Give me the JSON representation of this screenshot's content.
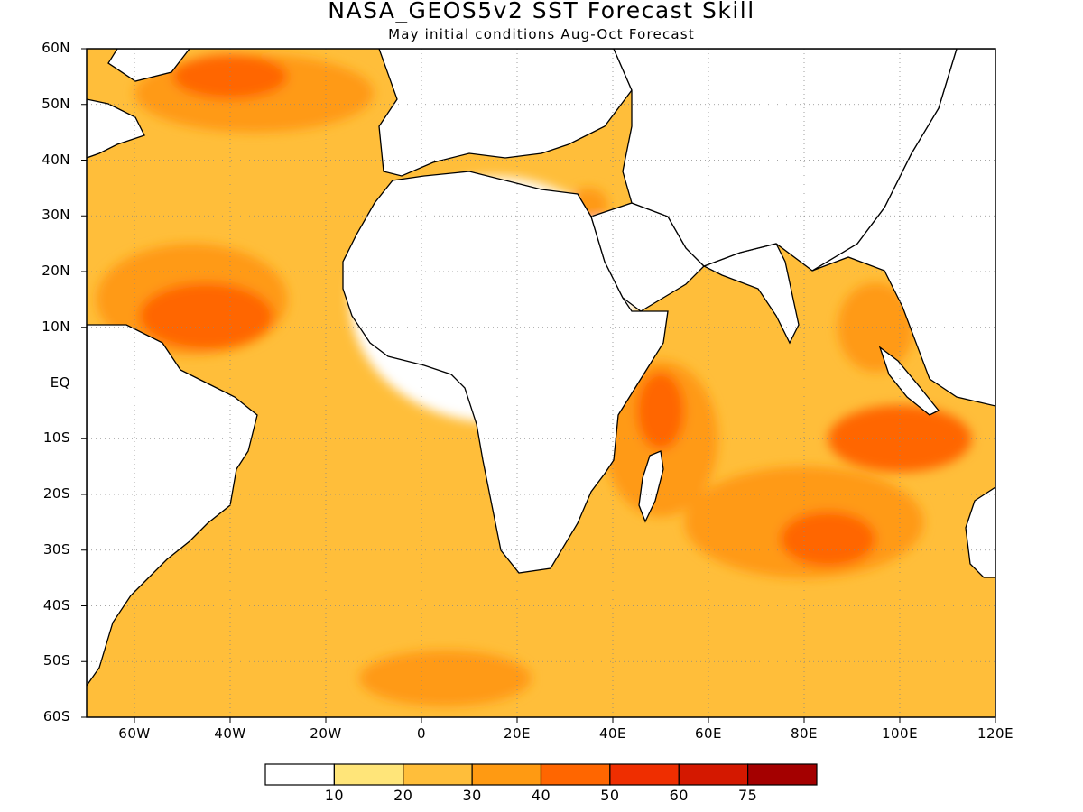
{
  "title": "NASA_GEOS5v2 SST Forecast Skill",
  "subtitle": "May initial conditions  Aug-Oct Forecast",
  "map": {
    "lon_range": [
      -70,
      120
    ],
    "lat_range": [
      -60,
      60
    ],
    "lat_labels": [
      "60N",
      "50N",
      "40N",
      "30N",
      "20N",
      "10N",
      "EQ",
      "10S",
      "20S",
      "30S",
      "40S",
      "50S",
      "60S"
    ],
    "lon_labels": [
      "60W",
      "40W",
      "20W",
      "0",
      "20E",
      "40E",
      "60E",
      "80E",
      "100E",
      "120E"
    ],
    "lon_ticks": [
      -60,
      -40,
      -20,
      0,
      20,
      40,
      60,
      80,
      100,
      120
    ],
    "lat_ticks": [
      60,
      50,
      40,
      30,
      20,
      10,
      0,
      -10,
      -20,
      -30,
      -40,
      -50,
      -60
    ],
    "grid": true,
    "skill_regions": [
      {
        "level": 0,
        "lon": 15,
        "lat": 15,
        "rx": 30,
        "ry": 22
      },
      {
        "level": 3,
        "lon": -48,
        "lat": 15,
        "rx": 20,
        "ry": 10
      },
      {
        "level": 4,
        "lon": -45,
        "lat": 12,
        "rx": 14,
        "ry": 6
      },
      {
        "level": 3,
        "lon": -35,
        "lat": 52,
        "rx": 25,
        "ry": 7
      },
      {
        "level": 4,
        "lon": -40,
        "lat": 55,
        "rx": 12,
        "ry": 4
      },
      {
        "level": 3,
        "lon": 50,
        "lat": -10,
        "rx": 12,
        "ry": 14
      },
      {
        "level": 4,
        "lon": 50,
        "lat": -5,
        "rx": 5,
        "ry": 7
      },
      {
        "level": 3,
        "lon": 80,
        "lat": -25,
        "rx": 25,
        "ry": 10
      },
      {
        "level": 4,
        "lon": 85,
        "lat": -28,
        "rx": 10,
        "ry": 5
      },
      {
        "level": 4,
        "lon": 100,
        "lat": -10,
        "rx": 15,
        "ry": 6
      },
      {
        "level": 3,
        "lon": 95,
        "lat": 10,
        "rx": 8,
        "ry": 8
      },
      {
        "level": 3,
        "lon": 5,
        "lat": -53,
        "rx": 18,
        "ry": 5
      },
      {
        "level": 3,
        "lon": 35,
        "lat": 32,
        "rx": 4,
        "ry": 3
      }
    ]
  },
  "colorbar": {
    "colors": [
      "#ffffff",
      "#ffe579",
      "#ffbe3a",
      "#ff9a12",
      "#ff6600",
      "#ef2e00",
      "#d41800",
      "#a40000"
    ],
    "labels": [
      "10",
      "20",
      "30",
      "40",
      "50",
      "60",
      "75"
    ]
  }
}
